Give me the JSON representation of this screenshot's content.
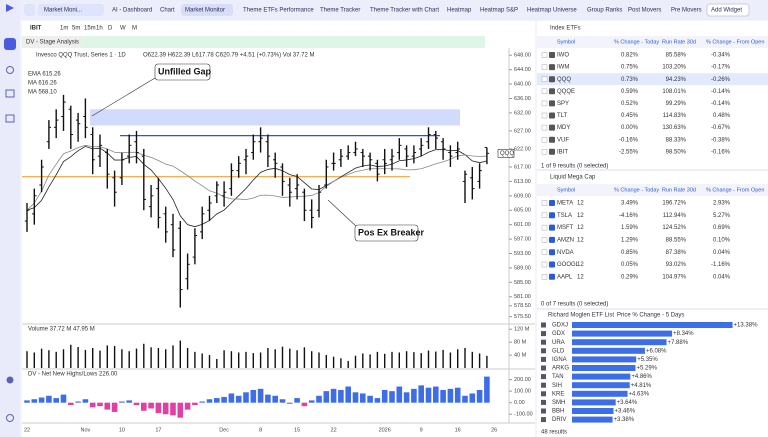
{
  "nav": {
    "workspace": "Market Moni...",
    "tabs": [
      "AI - Dashboard",
      "Chart",
      "Market Monitor",
      "Theme ETFs Performance",
      "Theme Tracker",
      "Theme Tracker with Chart",
      "Heatmap",
      "Heatmap S&P",
      "Heatmap Universe",
      "Group Ranks",
      "Post Movers",
      "Pre Movers"
    ],
    "add_widget": "Add Widget"
  },
  "chart_panel": {
    "symbol": "IBIT",
    "timeframes": [
      "1m",
      "5m",
      "15m",
      "1h",
      "D",
      "W",
      "M"
    ],
    "indicator": "DV - Stage Analysis",
    "title": "Invesco QQQ Trust, Series 1 · 1D",
    "ohlc_text": "O622.39 H622.39 L617.78 C620.79 +4.51 (+0.73%) Vol 37.72 M",
    "ema": "EMA 615.26",
    "ma1": "MA 616.26",
    "ma2": "MA 568.10",
    "price_tag": "QQQ",
    "volume_label": "Volume 37.72 M 47.95 M",
    "nnh_label": "DV - Net New Highs/Lows 226.00",
    "annotations": [
      "Unfilled Gap",
      "Pos Ex Breaker"
    ]
  },
  "chart_data": [
    {
      "type": "ohlc",
      "color": "#111111",
      "categories": [
        "22",
        null,
        null,
        null,
        null,
        null,
        null,
        null,
        "Nov",
        null,
        null,
        null,
        null,
        "10",
        null,
        null,
        null,
        null,
        "17",
        null,
        null,
        null,
        null,
        null,
        null,
        null,
        null,
        "Dec",
        null,
        null,
        null,
        null,
        "8",
        null,
        null,
        null,
        null,
        "15",
        null,
        null,
        null,
        null,
        "22",
        null,
        null,
        null,
        null,
        null,
        null,
        "2026",
        null,
        null,
        null,
        null,
        "9",
        null,
        null,
        null,
        null,
        "16",
        null,
        null,
        null,
        null,
        "26"
      ],
      "ohlc": [
        [
          602,
          607,
          599,
          605
        ],
        [
          604,
          611,
          601,
          609
        ],
        [
          612,
          619,
          610,
          617
        ],
        [
          624,
          630,
          622,
          628
        ],
        [
          628,
          633,
          625,
          630
        ],
        [
          631,
          637,
          627,
          635
        ],
        [
          633,
          634,
          622,
          626
        ],
        [
          630,
          632,
          624,
          629
        ],
        [
          631,
          636,
          625,
          628
        ],
        [
          626,
          628,
          615,
          619
        ],
        [
          620,
          626,
          617,
          623
        ],
        [
          621,
          622,
          611,
          615
        ],
        [
          614,
          616,
          606,
          610
        ],
        [
          614,
          621,
          612,
          619
        ],
        [
          620,
          626,
          618,
          623
        ],
        [
          624,
          627,
          618,
          621
        ],
        [
          620,
          622,
          605,
          608
        ],
        [
          606,
          612,
          603,
          609
        ],
        [
          611,
          614,
          600,
          603
        ],
        [
          604,
          606,
          596,
          599
        ],
        [
          601,
          604,
          592,
          594
        ],
        [
          600,
          602,
          578,
          583
        ],
        [
          586,
          593,
          583,
          590
        ],
        [
          592,
          600,
          590,
          598
        ],
        [
          599,
          606,
          597,
          604
        ],
        [
          605,
          609,
          602,
          607
        ],
        [
          609,
          613,
          607,
          612
        ],
        [
          609,
          613,
          606,
          610
        ],
        [
          611,
          618,
          609,
          616
        ],
        [
          616,
          620,
          614,
          618
        ],
        [
          619,
          622,
          615,
          620
        ],
        [
          621,
          626,
          619,
          624
        ],
        [
          624,
          628,
          621,
          625
        ],
        [
          624,
          626,
          617,
          620
        ],
        [
          619,
          621,
          614,
          618
        ],
        [
          617,
          618,
          609,
          613
        ],
        [
          612,
          614,
          606,
          610
        ],
        [
          611,
          615,
          608,
          612
        ],
        [
          610,
          611,
          602,
          605
        ],
        [
          605,
          608,
          600,
          603
        ],
        [
          605,
          612,
          603,
          610
        ],
        [
          612,
          619,
          611,
          617
        ],
        [
          618,
          621,
          616,
          618
        ],
        [
          619,
          622,
          617,
          620
        ],
        [
          620,
          623,
          619,
          621
        ],
        [
          621,
          624,
          620,
          622
        ],
        [
          621,
          622,
          617,
          620
        ],
        [
          620,
          621,
          616,
          619
        ],
        [
          618,
          619,
          613,
          615
        ],
        [
          619,
          622,
          615,
          618
        ],
        [
          619,
          622,
          616,
          620
        ],
        [
          621,
          625,
          619,
          623
        ],
        [
          622,
          623,
          617,
          620
        ],
        [
          620,
          623,
          618,
          621
        ],
        [
          622,
          625,
          620,
          623
        ],
        [
          624,
          628,
          622,
          626
        ],
        [
          626,
          627,
          622,
          625
        ],
        [
          624,
          625,
          619,
          622
        ],
        [
          621,
          623,
          617,
          620
        ],
        [
          621,
          624,
          619,
          622
        ],
        [
          613,
          616,
          607,
          615
        ],
        [
          614,
          617,
          608,
          611
        ],
        [
          613,
          618,
          611,
          616
        ],
        [
          622.39,
          622.39,
          617.78,
          620.79
        ],
        null
      ],
      "ylim": [
        574,
        650
      ],
      "yticks": [
        {
          "value": 648,
          "label": "648.00"
        },
        {
          "value": 644,
          "label": "644.00"
        },
        {
          "value": 640,
          "label": "640.00"
        },
        {
          "value": 636,
          "label": "636.00"
        },
        {
          "value": 632,
          "label": "632.00"
        },
        {
          "value": 627,
          "label": "627.00"
        },
        {
          "value": 622,
          "label": "622.00"
        },
        {
          "value": 617,
          "label": "617.00"
        },
        {
          "value": 613,
          "label": "613.00"
        },
        {
          "value": 609,
          "label": "609.00"
        },
        {
          "value": 605,
          "label": "605.00"
        },
        {
          "value": 601,
          "label": "601.00"
        },
        {
          "value": 597,
          "label": "597.00"
        },
        {
          "value": 593,
          "label": "593.00"
        },
        {
          "value": 589,
          "label": "589.00"
        },
        {
          "value": 585,
          "label": "585.00"
        },
        {
          "value": 581,
          "label": "581.00"
        },
        {
          "value": 578.5,
          "label": "578.50"
        },
        {
          "value": 575.5,
          "label": "575.50"
        }
      ],
      "gap_zone": [
        628.5,
        633
      ],
      "resistance": 625.7,
      "support": 614.3
    },
    {
      "type": "bar",
      "color": "#111111",
      "values": [
        52,
        48,
        60,
        55,
        50,
        58,
        72,
        65,
        56,
        62,
        54,
        70,
        68,
        58,
        52,
        60,
        75,
        64,
        62,
        58,
        70,
        85,
        62,
        50,
        45,
        40,
        28,
        55,
        52,
        48,
        50,
        46,
        48,
        62,
        58,
        66,
        60,
        55,
        64,
        52,
        48,
        40,
        35,
        30,
        22,
        38,
        45,
        42,
        50,
        44,
        50,
        48,
        52,
        49,
        46,
        54,
        51,
        56,
        48,
        58,
        62,
        50,
        45,
        37.72,
        null
      ],
      "ylim": [
        0,
        130
      ],
      "yticks": [
        {
          "value": 120,
          "label": "120 M"
        },
        {
          "value": 80,
          "label": "80 M"
        },
        {
          "value": 40,
          "label": "40 M"
        }
      ]
    },
    {
      "type": "bar",
      "color": "#3d6ee8",
      "negative_color": "#e23fa5",
      "values": [
        20,
        30,
        45,
        60,
        40,
        70,
        -20,
        10,
        30,
        -40,
        -30,
        -60,
        -80,
        10,
        20,
        -20,
        -70,
        -50,
        -90,
        -100,
        -110,
        -130,
        -60,
        -20,
        10,
        30,
        40,
        50,
        80,
        60,
        90,
        110,
        120,
        70,
        60,
        30,
        -10,
        40,
        -30,
        20,
        60,
        100,
        120,
        110,
        140,
        90,
        80,
        60,
        40,
        110,
        100,
        140,
        90,
        120,
        150,
        130,
        140,
        110,
        120,
        130,
        60,
        80,
        110,
        226,
        null
      ],
      "ylim": [
        -150,
        240
      ],
      "yticks": [
        {
          "value": 200,
          "label": "200.00"
        },
        {
          "value": 100,
          "label": "100.00"
        },
        {
          "value": 0,
          "label": "0.00"
        },
        {
          "value": -100,
          "label": "-100.00"
        }
      ]
    },
    {
      "type": "hbar",
      "title": "Richard Moglen ETF List",
      "subtitle": "Price % Change - 5 Days",
      "color": "#3d6ee8",
      "categories": [
        "GDXJ",
        "GDX",
        "URA",
        "GLD",
        "IGNA",
        "ARKG",
        "TAN",
        "SIH",
        "KRE",
        "SMH",
        "BBH",
        "DRIV"
      ],
      "values": [
        13.38,
        8.34,
        7.88,
        6.08,
        5.35,
        5.29,
        4.86,
        4.81,
        4.63,
        3.64,
        3.46,
        3.38
      ],
      "value_labels": [
        "+13.38%",
        "+8.34%",
        "+7.88%",
        "+6.08%",
        "+5.35%",
        "+5.29%",
        "+4.86%",
        "+4.81%",
        "+4.63%",
        "+3.64%",
        "+3.46%",
        "+3.38%"
      ],
      "xlim": [
        0,
        14
      ],
      "footer": "48 results"
    }
  ],
  "tables": [
    {
      "title": "Index ETFs",
      "columns": [
        "Symbol",
        "% Change - Today",
        "Run Rate 30d",
        "% Change - From Open"
      ],
      "rows": [
        [
          "IWO",
          "0.82%",
          "85.58%",
          "-0.34%"
        ],
        [
          "IWM",
          "0.75%",
          "103.20%",
          "-0.17%"
        ],
        [
          "QQQ",
          "0.73%",
          "94.23%",
          "-0.26%"
        ],
        [
          "QQQE",
          "0.59%",
          "108.01%",
          "-0.14%"
        ],
        [
          "SPY",
          "0.52%",
          "99.29%",
          "-0.14%"
        ],
        [
          "TLT",
          "0.45%",
          "114.83%",
          "0.48%"
        ],
        [
          "MDY",
          "0.00%",
          "130.63%",
          "-0.67%"
        ],
        [
          "VUF",
          "-0.16%",
          "88.33%",
          "-0.38%"
        ],
        [
          "IBIT",
          "-2.55%",
          "98.50%",
          "-0.16%"
        ]
      ],
      "badges": [
        null,
        null,
        null,
        null,
        null,
        null,
        null,
        null,
        null
      ],
      "footer": "1 of 9 results (0 selected)"
    },
    {
      "title": "Liquid Mega Cap",
      "columns": [
        "Symbol",
        "% Change - Today",
        "Run Rate 30d",
        "% Change - From Open"
      ],
      "rows": [
        [
          "META",
          "3.49%",
          "196.72%",
          "2.93%"
        ],
        [
          "TSLA",
          "-4.16%",
          "112.94%",
          "5.27%"
        ],
        [
          "MSFT",
          "1.59%",
          "124.52%",
          "0.69%"
        ],
        [
          "AMZN",
          "1.29%",
          "88.55%",
          "0.10%"
        ],
        [
          "NVDA",
          "0.85%",
          "87.38%",
          "0.04%"
        ],
        [
          "GOOGL",
          "0.05%",
          "93.02%",
          "-1.16%"
        ],
        [
          "AAPL",
          "0.29%",
          "104.97%",
          "0.04%"
        ]
      ],
      "badges": [
        "12",
        "12",
        "12",
        "12",
        null,
        "12",
        "12"
      ],
      "footer": "0 of 7 results (0 selected)"
    }
  ]
}
